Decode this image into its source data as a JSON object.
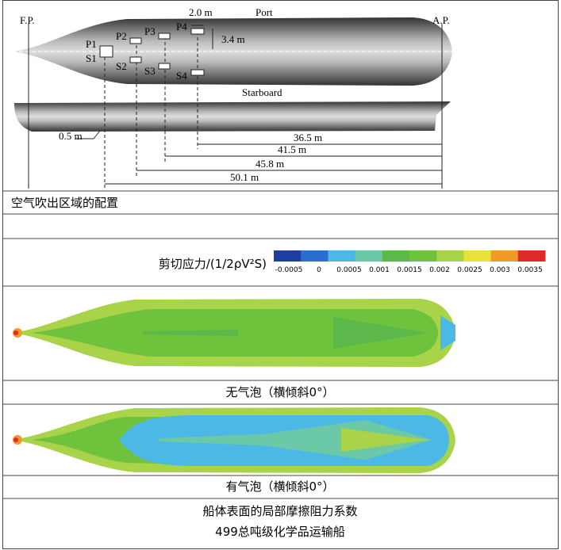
{
  "diagram": {
    "fp": "F.P.",
    "ap": "A.P.",
    "port": "Port",
    "starboard": "Starboard",
    "port_outlets": [
      "P1",
      "P2",
      "P3",
      "P4"
    ],
    "starboard_outlets": [
      "S1",
      "S2",
      "S3",
      "S4"
    ],
    "outlet_width": "2.0 m",
    "outlet_offset": "3.4 m",
    "outlet_depth": "0.5 m",
    "distances": [
      "36.5 m",
      "41.5 m",
      "45.8 m",
      "50.1 m"
    ]
  },
  "caption_1": "空气吹出区域的配置",
  "colorbar": {
    "title": "剪切应力/(1/2ρV²S)",
    "ticks": [
      "-0.0005",
      "0",
      "0.0005",
      "0.001",
      "0.0015",
      "0.002",
      "0.0025",
      "0.003",
      "0.0035"
    ],
    "colors": [
      "#1f3fa0",
      "#2a6fd0",
      "#4cb8e6",
      "#6cc9a8",
      "#5cb84a",
      "#6ec23c",
      "#a9d44a",
      "#e8e23a",
      "#f09a2a",
      "#e02a2a"
    ]
  },
  "caption_2": "无气泡（横倾斜0°）",
  "caption_3": "有气泡（横倾斜0°）",
  "caption_4": [
    "船体表面的局部摩擦阻力系数",
    "499总吨级化学品运输船"
  ]
}
